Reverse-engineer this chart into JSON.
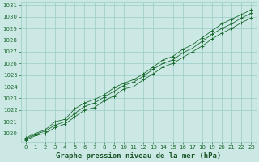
{
  "title": "Graphe pression niveau de la mer (hPa)",
  "xlabel_hours": [
    0,
    1,
    2,
    3,
    4,
    5,
    6,
    7,
    8,
    9,
    10,
    11,
    12,
    13,
    14,
    15,
    16,
    17,
    18,
    19,
    20,
    21,
    22,
    23
  ],
  "line1": [
    1019.6,
    1020.0,
    1020.3,
    1021.0,
    1021.2,
    1022.1,
    1022.6,
    1022.9,
    1023.3,
    1023.9,
    1024.3,
    1024.6,
    1025.1,
    1025.7,
    1026.3,
    1026.6,
    1027.2,
    1027.6,
    1028.2,
    1028.8,
    1029.4,
    1029.8,
    1030.2,
    1030.6
  ],
  "line2": [
    1019.5,
    1019.9,
    1020.2,
    1020.7,
    1021.0,
    1021.7,
    1022.3,
    1022.6,
    1023.1,
    1023.6,
    1024.1,
    1024.4,
    1024.9,
    1025.5,
    1026.0,
    1026.3,
    1026.9,
    1027.3,
    1027.9,
    1028.5,
    1029.0,
    1029.4,
    1029.9,
    1030.3
  ],
  "line3": [
    1019.4,
    1019.8,
    1020.0,
    1020.5,
    1020.8,
    1021.4,
    1022.0,
    1022.2,
    1022.8,
    1023.2,
    1023.8,
    1024.0,
    1024.6,
    1025.1,
    1025.7,
    1026.0,
    1026.5,
    1027.0,
    1027.5,
    1028.1,
    1028.6,
    1029.0,
    1029.5,
    1029.9
  ],
  "ymin": 1019.3,
  "ymax": 1031.2,
  "ytick_vals": [
    1020,
    1021,
    1022,
    1023,
    1024,
    1025,
    1026,
    1027,
    1028,
    1029,
    1030,
    1031
  ],
  "ytick_labels": [
    "1020",
    "1021",
    "1022",
    "1023",
    "1024",
    "1025",
    "1026",
    "1027",
    "1028",
    "1029",
    "1030",
    "1031"
  ],
  "bg_color": "#cce8e4",
  "grid_color": "#99ccc6",
  "line_color": "#1a6b30",
  "marker_color": "#1a6b30",
  "title_color": "#1a5528",
  "title_fontsize": 6.5,
  "tick_fontsize": 5.0
}
